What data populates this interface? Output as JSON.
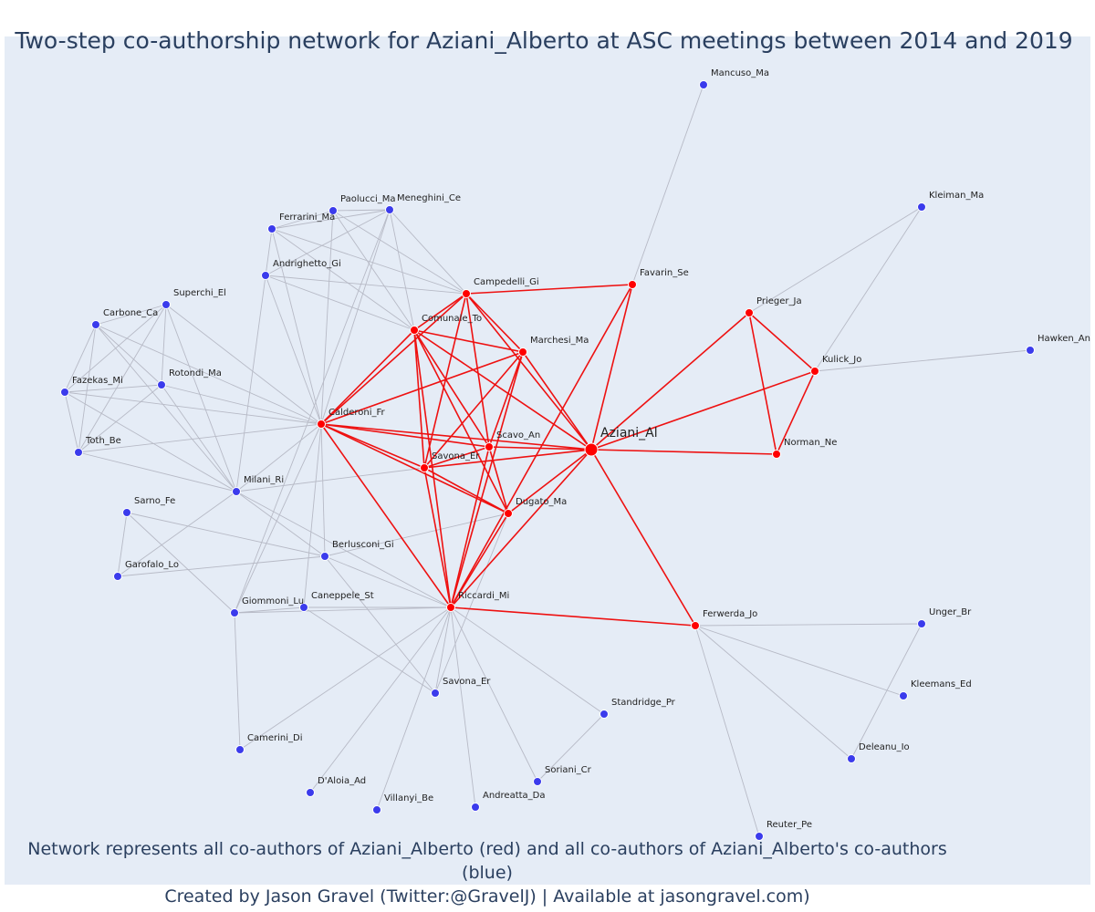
{
  "title": "Two-step co-authorship network for Aziani_Alberto at ASC meetings between 2014 and 2019",
  "footer": {
    "line1": "Network represents all co-authors of Aziani_Alberto (red) and all co-authors of Aziani_Alberto's co-authors (blue)",
    "line2": "Created by Jason Gravel (Twitter:@GravelJ) | Available at jasongravel.com)"
  },
  "colors": {
    "background": "#e5ecf6",
    "first_degree": "#ff0000",
    "second_degree": "#3b3bec",
    "first_edge": "#ee1111",
    "second_edge": "#b7bac6",
    "title": "#2a3f5f"
  },
  "network": {
    "nodes": [
      {
        "id": "Aziani_Al",
        "group": "center"
      },
      {
        "id": "Campedelli_Gi",
        "group": "first"
      },
      {
        "id": "Comunale_To",
        "group": "first"
      },
      {
        "id": "Marchesi_Ma",
        "group": "first"
      },
      {
        "id": "Calderoni_Fr",
        "group": "first"
      },
      {
        "id": "Scavo_An",
        "group": "first"
      },
      {
        "id": "Savona_Er",
        "group": "first"
      },
      {
        "id": "Dugato_Ma",
        "group": "first"
      },
      {
        "id": "Riccardi_Mi",
        "group": "first"
      },
      {
        "id": "Favarin_Se",
        "group": "first"
      },
      {
        "id": "Prieger_Ja",
        "group": "first"
      },
      {
        "id": "Kulick_Jo",
        "group": "first"
      },
      {
        "id": "Norman_Ne",
        "group": "first"
      },
      {
        "id": "Ferwerda_Jo",
        "group": "first"
      },
      {
        "id": "Mancuso_Ma",
        "group": "second"
      },
      {
        "id": "Kleiman_Ma",
        "group": "second"
      },
      {
        "id": "Hawken_An",
        "group": "second"
      },
      {
        "id": "Paolucci_Ma",
        "group": "second"
      },
      {
        "id": "Meneghini_Ce",
        "group": "second"
      },
      {
        "id": "Ferrarini_Ma",
        "group": "second"
      },
      {
        "id": "Andrighetto_Gi",
        "group": "second"
      },
      {
        "id": "Superchi_El",
        "group": "second"
      },
      {
        "id": "Carbone_Ca",
        "group": "second"
      },
      {
        "id": "Rotondi_Ma",
        "group": "second"
      },
      {
        "id": "Fazekas_Mi",
        "group": "second"
      },
      {
        "id": "Toth_Be",
        "group": "second"
      },
      {
        "id": "Milani_Ri",
        "group": "second"
      },
      {
        "id": "Sarno_Fe",
        "group": "second"
      },
      {
        "id": "Garofalo_Lo",
        "group": "second"
      },
      {
        "id": "Berlusconi_Gi",
        "group": "second"
      },
      {
        "id": "Giommoni_Lu",
        "group": "second"
      },
      {
        "id": "Caneppele_St",
        "group": "second"
      },
      {
        "id": "Camerini_Di",
        "group": "second"
      },
      {
        "id": "D'Aloia_Ad",
        "group": "second"
      },
      {
        "id": "Villanyi_Be",
        "group": "second"
      },
      {
        "id": "Andreatta_Da",
        "group": "second"
      },
      {
        "id": "Savona_Er2",
        "label": "Savona_Er",
        "group": "second"
      },
      {
        "id": "Soriani_Cr",
        "group": "second"
      },
      {
        "id": "Standridge_Pr",
        "group": "second"
      },
      {
        "id": "Unger_Br",
        "group": "second"
      },
      {
        "id": "Kleemans_Ed",
        "group": "second"
      },
      {
        "id": "Deleanu_Io",
        "group": "second"
      },
      {
        "id": "Reuter_Pe",
        "group": "second"
      }
    ],
    "edges_first": [
      [
        "Aziani_Al",
        "Campedelli_Gi"
      ],
      [
        "Aziani_Al",
        "Comunale_To"
      ],
      [
        "Aziani_Al",
        "Marchesi_Ma"
      ],
      [
        "Aziani_Al",
        "Calderoni_Fr"
      ],
      [
        "Aziani_Al",
        "Scavo_An"
      ],
      [
        "Aziani_Al",
        "Savona_Er"
      ],
      [
        "Aziani_Al",
        "Dugato_Ma"
      ],
      [
        "Aziani_Al",
        "Riccardi_Mi"
      ],
      [
        "Aziani_Al",
        "Favarin_Se"
      ],
      [
        "Aziani_Al",
        "Prieger_Ja"
      ],
      [
        "Aziani_Al",
        "Kulick_Jo"
      ],
      [
        "Aziani_Al",
        "Norman_Ne"
      ],
      [
        "Aziani_Al",
        "Ferwerda_Jo"
      ],
      [
        "Campedelli_Gi",
        "Comunale_To"
      ],
      [
        "Campedelli_Gi",
        "Marchesi_Ma"
      ],
      [
        "Campedelli_Gi",
        "Calderoni_Fr"
      ],
      [
        "Campedelli_Gi",
        "Scavo_An"
      ],
      [
        "Campedelli_Gi",
        "Savona_Er"
      ],
      [
        "Campedelli_Gi",
        "Favarin_Se"
      ],
      [
        "Comunale_To",
        "Marchesi_Ma"
      ],
      [
        "Comunale_To",
        "Calderoni_Fr"
      ],
      [
        "Comunale_To",
        "Scavo_An"
      ],
      [
        "Comunale_To",
        "Savona_Er"
      ],
      [
        "Comunale_To",
        "Dugato_Ma"
      ],
      [
        "Comunale_To",
        "Riccardi_Mi"
      ],
      [
        "Marchesi_Ma",
        "Calderoni_Fr"
      ],
      [
        "Marchesi_Ma",
        "Scavo_An"
      ],
      [
        "Marchesi_Ma",
        "Savona_Er"
      ],
      [
        "Marchesi_Ma",
        "Riccardi_Mi"
      ],
      [
        "Calderoni_Fr",
        "Scavo_An"
      ],
      [
        "Calderoni_Fr",
        "Savona_Er"
      ],
      [
        "Calderoni_Fr",
        "Dugato_Ma"
      ],
      [
        "Calderoni_Fr",
        "Riccardi_Mi"
      ],
      [
        "Scavo_An",
        "Savona_Er"
      ],
      [
        "Scavo_An",
        "Dugato_Ma"
      ],
      [
        "Scavo_An",
        "Riccardi_Mi"
      ],
      [
        "Savona_Er",
        "Dugato_Ma"
      ],
      [
        "Savona_Er",
        "Riccardi_Mi"
      ],
      [
        "Dugato_Ma",
        "Riccardi_Mi"
      ],
      [
        "Favarin_Se",
        "Riccardi_Mi"
      ],
      [
        "Riccardi_Mi",
        "Ferwerda_Jo"
      ],
      [
        "Prieger_Ja",
        "Kulick_Jo"
      ],
      [
        "Prieger_Ja",
        "Norman_Ne"
      ],
      [
        "Kulick_Jo",
        "Norman_Ne"
      ]
    ],
    "edges_second": [
      [
        "Favarin_Se",
        "Mancuso_Ma"
      ],
      [
        "Prieger_Ja",
        "Kleiman_Ma"
      ],
      [
        "Kulick_Jo",
        "Kleiman_Ma"
      ],
      [
        "Kulick_Jo",
        "Hawken_An"
      ],
      [
        "Paolucci_Ma",
        "Meneghini_Ce"
      ],
      [
        "Paolucci_Ma",
        "Campedelli_Gi"
      ],
      [
        "Paolucci_Ma",
        "Comunale_To"
      ],
      [
        "Paolucci_Ma",
        "Ferrarini_Ma"
      ],
      [
        "Paolucci_Ma",
        "Calderoni_Fr"
      ],
      [
        "Meneghini_Ce",
        "Ferrarini_Ma"
      ],
      [
        "Meneghini_Ce",
        "Campedelli_Gi"
      ],
      [
        "Meneghini_Ce",
        "Comunale_To"
      ],
      [
        "Meneghini_Ce",
        "Andrighetto_Gi"
      ],
      [
        "Meneghini_Ce",
        "Calderoni_Fr"
      ],
      [
        "Ferrarini_Ma",
        "Campedelli_Gi"
      ],
      [
        "Ferrarini_Ma",
        "Comunale_To"
      ],
      [
        "Ferrarini_Ma",
        "Calderoni_Fr"
      ],
      [
        "Andrighetto_Gi",
        "Campedelli_Gi"
      ],
      [
        "Andrighetto_Gi",
        "Comunale_To"
      ],
      [
        "Andrighetto_Gi",
        "Calderoni_Fr"
      ],
      [
        "Superchi_El",
        "Carbone_Ca"
      ],
      [
        "Superchi_El",
        "Rotondi_Ma"
      ],
      [
        "Superchi_El",
        "Fazekas_Mi"
      ],
      [
        "Superchi_El",
        "Toth_Be"
      ],
      [
        "Superchi_El",
        "Calderoni_Fr"
      ],
      [
        "Superchi_El",
        "Milani_Ri"
      ],
      [
        "Carbone_Ca",
        "Rotondi_Ma"
      ],
      [
        "Carbone_Ca",
        "Fazekas_Mi"
      ],
      [
        "Carbone_Ca",
        "Toth_Be"
      ],
      [
        "Carbone_Ca",
        "Calderoni_Fr"
      ],
      [
        "Carbone_Ca",
        "Milani_Ri"
      ],
      [
        "Rotondi_Ma",
        "Fazekas_Mi"
      ],
      [
        "Rotondi_Ma",
        "Toth_Be"
      ],
      [
        "Rotondi_Ma",
        "Calderoni_Fr"
      ],
      [
        "Rotondi_Ma",
        "Milani_Ri"
      ],
      [
        "Fazekas_Mi",
        "Toth_Be"
      ],
      [
        "Fazekas_Mi",
        "Calderoni_Fr"
      ],
      [
        "Fazekas_Mi",
        "Milani_Ri"
      ],
      [
        "Toth_Be",
        "Calderoni_Fr"
      ],
      [
        "Toth_Be",
        "Milani_Ri"
      ],
      [
        "Milani_Ri",
        "Calderoni_Fr"
      ],
      [
        "Milani_Ri",
        "Savona_Er"
      ],
      [
        "Milani_Ri",
        "Berlusconi_Gi"
      ],
      [
        "Milani_Ri",
        "Riccardi_Mi"
      ],
      [
        "Milani_Ri",
        "Garofalo_Lo"
      ],
      [
        "Milani_Ri",
        "Ferrarini_Ma"
      ],
      [
        "Sarno_Fe",
        "Garofalo_Lo"
      ],
      [
        "Sarno_Fe",
        "Berlusconi_Gi"
      ],
      [
        "Sarno_Fe",
        "Giommoni_Lu"
      ],
      [
        "Garofalo_Lo",
        "Berlusconi_Gi"
      ],
      [
        "Berlusconi_Gi",
        "Calderoni_Fr"
      ],
      [
        "Berlusconi_Gi",
        "Riccardi_Mi"
      ],
      [
        "Berlusconi_Gi",
        "Dugato_Ma"
      ],
      [
        "Berlusconi_Gi",
        "Savona_Er2"
      ],
      [
        "Giommoni_Lu",
        "Calderoni_Fr"
      ],
      [
        "Giommoni_Lu",
        "Riccardi_Mi"
      ],
      [
        "Giommoni_Lu",
        "Caneppele_St"
      ],
      [
        "Giommoni_Lu",
        "Camerini_Di"
      ],
      [
        "Giommoni_Lu",
        "Meneghini_Ce"
      ],
      [
        "Caneppele_St",
        "Calderoni_Fr"
      ],
      [
        "Caneppele_St",
        "Riccardi_Mi"
      ],
      [
        "Caneppele_St",
        "Savona_Er2"
      ],
      [
        "Riccardi_Mi",
        "Camerini_Di"
      ],
      [
        "Riccardi_Mi",
        "D'Aloia_Ad"
      ],
      [
        "Riccardi_Mi",
        "Villanyi_Be"
      ],
      [
        "Riccardi_Mi",
        "Andreatta_Da"
      ],
      [
        "Riccardi_Mi",
        "Savona_Er2"
      ],
      [
        "Riccardi_Mi",
        "Soriani_Cr"
      ],
      [
        "Riccardi_Mi",
        "Standridge_Pr"
      ],
      [
        "Savona_Er2",
        "Dugato_Ma"
      ],
      [
        "Soriani_Cr",
        "Standridge_Pr"
      ],
      [
        "Ferwerda_Jo",
        "Unger_Br"
      ],
      [
        "Ferwerda_Jo",
        "Kleemans_Ed"
      ],
      [
        "Ferwerda_Jo",
        "Deleanu_Io"
      ],
      [
        "Ferwerda_Jo",
        "Reuter_Pe"
      ],
      [
        "Unger_Br",
        "Deleanu_Io"
      ]
    ]
  }
}
